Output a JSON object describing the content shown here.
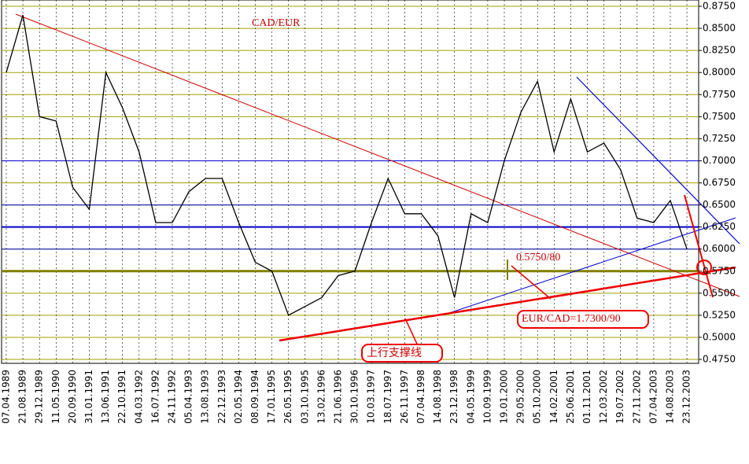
{
  "chart_data": {
    "type": "line",
    "title": "CAD/EUR",
    "categories": [
      "07.04.1989",
      "21.08.1989",
      "29.12.1989",
      "11.05.1990",
      "20.09.1990",
      "31.01.1991",
      "13.06.1991",
      "22.10.1991",
      "04.03.1992",
      "16.07.1992",
      "24.11.1992",
      "05.04.1993",
      "13.08.1993",
      "22.12.1993",
      "02.05.1994",
      "08.09.1994",
      "17.01.1995",
      "26.05.1995",
      "03.10.1995",
      "13.02.1996",
      "21.06.1996",
      "30.10.1996",
      "10.03.1997",
      "18.07.1997",
      "26.11.1997",
      "07.04.1998",
      "14.08.1998",
      "23.12.1998",
      "04.05.1999",
      "10.09.1999",
      "19.01.2000",
      "29.05.2000",
      "05.10.2000",
      "14.02.2001",
      "25.06.2001",
      "01.11.2001",
      "12.03.2002",
      "19.07.2002",
      "27.11.2002",
      "07.04.2003",
      "14.08.2003",
      "23.12.2003"
    ],
    "series": [
      {
        "color": "#000000",
        "values": [
          0.8,
          0.865,
          0.75,
          0.745,
          0.67,
          0.645,
          0.8,
          0.76,
          0.71,
          0.63,
          0.63,
          0.665,
          0.68,
          0.68,
          0.63,
          0.585,
          0.575,
          0.525,
          0.535,
          0.545,
          0.57,
          0.575,
          0.63,
          0.68,
          0.64,
          0.64,
          0.615,
          0.545,
          0.64,
          0.63,
          0.7,
          0.755,
          0.79,
          0.71,
          0.77,
          0.71,
          0.72,
          0.69,
          0.635,
          0.63,
          0.655,
          0.6
        ]
      }
    ],
    "ylim": [
      0.475,
      0.875
    ],
    "yticks": [
      {
        "value": 0.875,
        "label": "0.8750"
      },
      {
        "value": 0.85,
        "label": "0.8500"
      },
      {
        "value": 0.825,
        "label": "0.8250"
      },
      {
        "value": 0.8,
        "label": "0.8000"
      },
      {
        "value": 0.775,
        "label": "0.7750"
      },
      {
        "value": 0.75,
        "label": "0.7500"
      },
      {
        "value": 0.725,
        "label": "0.7250"
      },
      {
        "value": 0.7,
        "label": "0.7000"
      },
      {
        "value": 0.675,
        "label": "0.6750"
      },
      {
        "value": 0.65,
        "label": "0.6500"
      },
      {
        "value": 0.625,
        "label": "0.6250"
      },
      {
        "value": 0.6,
        "label": "0.6000"
      },
      {
        "value": 0.575,
        "label": "0.5750"
      },
      {
        "value": 0.55,
        "label": "0.5500"
      },
      {
        "value": 0.525,
        "label": "0.5250"
      },
      {
        "value": 0.5,
        "label": "0.5000"
      },
      {
        "value": 0.475,
        "label": "0.4750"
      }
    ],
    "grid": true,
    "grid_color": "#a0a000",
    "hlines": [
      {
        "value": 0.7,
        "color": "#0000cc",
        "width": 1
      },
      {
        "value": 0.65,
        "color": "#0000cc",
        "width": 1
      },
      {
        "value": 0.625,
        "color": "#0000cc",
        "width": 2
      },
      {
        "value": 0.6,
        "color": "#0000cc",
        "width": 1
      },
      {
        "value": 0.575,
        "color": "#808000",
        "width": 3
      }
    ],
    "annotations": [
      "0.5750/80",
      "EUR/CAD=1.7300/90",
      "上行支撑线"
    ]
  }
}
